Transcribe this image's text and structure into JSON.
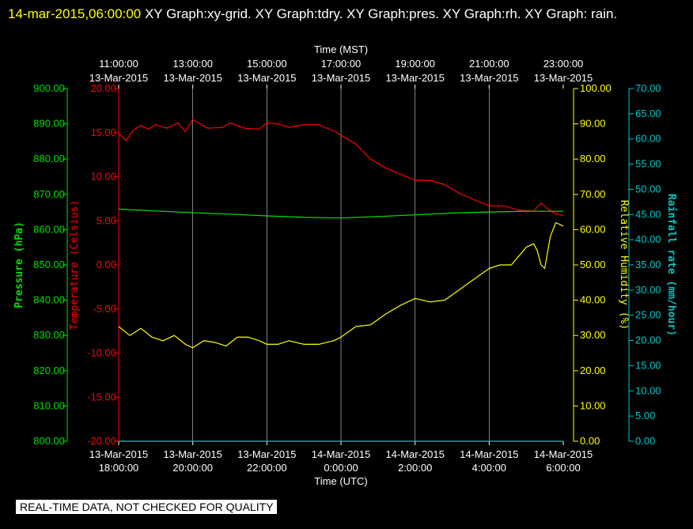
{
  "header": {
    "timestamp": "14-mar-2015,06:00:00",
    "graphs": "XY Graph:xy-grid.  XY Graph:tdry.  XY Graph:pres.  XY Graph:rh.  XY Graph: rain."
  },
  "footer_note": "REAL-TIME DATA, NOT CHECKED FOR QUALITY",
  "colors": {
    "pressure": "#00e000",
    "temperature": "#ff0000",
    "humidity": "#ffff00",
    "rain": "#00c8c8",
    "grid": "#ffffff",
    "axis_text": "#ffffff"
  },
  "chart_data": {
    "type": "line",
    "x_range_utc_hours": [
      18,
      30
    ],
    "top_axis": {
      "title": "Time (MST)",
      "ticks": [
        {
          "time": "11:00:00",
          "date": "13-Mar-2015"
        },
        {
          "time": "13:00:00",
          "date": "13-Mar-2015"
        },
        {
          "time": "15:00:00",
          "date": "13-Mar-2015"
        },
        {
          "time": "17:00:00",
          "date": "13-Mar-2015"
        },
        {
          "time": "19:00:00",
          "date": "13-Mar-2015"
        },
        {
          "time": "21:00:00",
          "date": "13-Mar-2015"
        },
        {
          "time": "23:00:00",
          "date": "13-Mar-2015"
        }
      ]
    },
    "bottom_axis": {
      "title": "Time (UTC)",
      "ticks": [
        {
          "date": "13-Mar-2015",
          "time": "18:00:00"
        },
        {
          "date": "13-Mar-2015",
          "time": "20:00:00"
        },
        {
          "date": "13-Mar-2015",
          "time": "22:00:00"
        },
        {
          "date": "14-Mar-2015",
          "time": "0:00:00"
        },
        {
          "date": "14-Mar-2015",
          "time": "2:00:00"
        },
        {
          "date": "14-Mar-2015",
          "time": "4:00:00"
        },
        {
          "date": "14-Mar-2015",
          "time": "6:00:00"
        }
      ]
    },
    "axes": {
      "pressure": {
        "label": "Pressure (hPa)",
        "range": [
          800,
          900
        ],
        "ticks": [
          "800.00",
          "810.00",
          "820.00",
          "830.00",
          "840.00",
          "850.00",
          "860.00",
          "870.00",
          "880.00",
          "890.00",
          "900.00"
        ]
      },
      "temperature": {
        "label": "Temperature (Celsius)",
        "range": [
          -20,
          20
        ],
        "ticks": [
          "-20.00",
          "-15.00",
          "-10.00",
          "-5.00",
          "0.00",
          "5.00",
          "10.00",
          "15.00",
          "20.00"
        ]
      },
      "humidity": {
        "label": "Relative Humidity (%)",
        "range": [
          0,
          100
        ],
        "ticks": [
          "0.00",
          "10.00",
          "20.00",
          "30.00",
          "40.00",
          "50.00",
          "60.00",
          "70.00",
          "80.00",
          "90.00",
          "100.00"
        ]
      },
      "rain": {
        "label": "Rainfall rate (mm/hour)",
        "range": [
          0,
          70
        ],
        "ticks": [
          "0.00",
          "5.00",
          "10.00",
          "15.00",
          "20.00",
          "25.00",
          "30.00",
          "35.00",
          "40.00",
          "45.00",
          "50.00",
          "55.00",
          "60.00",
          "65.00",
          "70.00"
        ]
      }
    },
    "grid": true,
    "series": [
      {
        "key": "temperature",
        "x": [
          18.0,
          18.2,
          18.4,
          18.6,
          18.8,
          19.0,
          19.3,
          19.6,
          19.8,
          20.0,
          20.4,
          20.8,
          21.0,
          21.4,
          21.8,
          22.0,
          22.3,
          22.6,
          23.0,
          23.4,
          23.8,
          24.0,
          24.4,
          24.8,
          25.2,
          25.6,
          26.0,
          26.4,
          26.8,
          27.2,
          27.6,
          28.0,
          28.4,
          28.8,
          29.2,
          29.4,
          29.6,
          29.8,
          30.0
        ],
        "y": [
          14.9,
          14.1,
          15.3,
          15.8,
          15.4,
          15.9,
          15.5,
          16.1,
          15.1,
          16.5,
          15.5,
          15.6,
          16.1,
          15.5,
          15.4,
          16.1,
          16.0,
          15.6,
          15.9,
          15.9,
          15.2,
          14.7,
          13.7,
          12.0,
          11.0,
          10.3,
          9.6,
          9.6,
          9.1,
          8.1,
          7.4,
          6.7,
          6.7,
          6.2,
          6.1,
          7.0,
          6.3,
          5.8,
          5.6
        ]
      },
      {
        "key": "humidity",
        "x": [
          18.0,
          18.3,
          18.6,
          18.9,
          19.2,
          19.5,
          19.8,
          20.0,
          20.3,
          20.6,
          20.9,
          21.2,
          21.5,
          21.8,
          22.0,
          22.3,
          22.6,
          23.0,
          23.4,
          23.8,
          24.0,
          24.4,
          24.8,
          25.2,
          25.6,
          26.0,
          26.4,
          26.8,
          27.2,
          27.6,
          28.0,
          28.3,
          28.6,
          29.0,
          29.2,
          29.3,
          29.4,
          29.5,
          29.65,
          29.8,
          30.0
        ],
        "y": [
          32.5,
          30.0,
          32.0,
          29.5,
          28.5,
          30.0,
          27.5,
          26.5,
          28.5,
          28.0,
          27.0,
          29.5,
          29.5,
          28.5,
          27.5,
          27.5,
          28.5,
          27.5,
          27.5,
          28.5,
          29.5,
          32.5,
          33.0,
          36.0,
          38.5,
          40.5,
          39.5,
          40.0,
          43.0,
          46.0,
          49.0,
          50.0,
          50.0,
          55.0,
          56.0,
          54.0,
          50.0,
          49.0,
          58.0,
          62.0,
          61.0
        ]
      },
      {
        "key": "pressure",
        "x": [
          18.0,
          19.0,
          20.0,
          21.0,
          22.0,
          23.0,
          24.0,
          25.0,
          26.0,
          27.0,
          28.0,
          29.0,
          30.0
        ],
        "y": [
          865.8,
          865.3,
          864.8,
          864.4,
          863.9,
          863.5,
          863.3,
          863.7,
          864.2,
          864.7,
          865.0,
          865.2,
          865.2
        ]
      },
      {
        "key": "rain",
        "x": [
          18.0,
          30.0
        ],
        "y": [
          0.0,
          0.0
        ]
      }
    ]
  }
}
